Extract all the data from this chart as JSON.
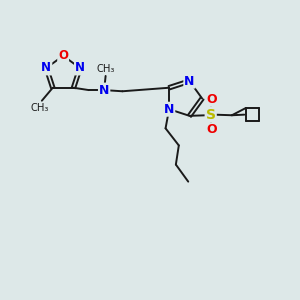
{
  "bg_color": "#dde8e8",
  "bond_color": "#1a1a1a",
  "bond_width": 1.4,
  "atom_colors": {
    "N": "#0000ee",
    "O": "#ee0000",
    "S": "#bbbb00",
    "C": "#1a1a1a"
  },
  "figsize": [
    3.0,
    3.0
  ],
  "dpi": 100,
  "xlim": [
    0,
    10
  ],
  "ylim": [
    0,
    10
  ]
}
